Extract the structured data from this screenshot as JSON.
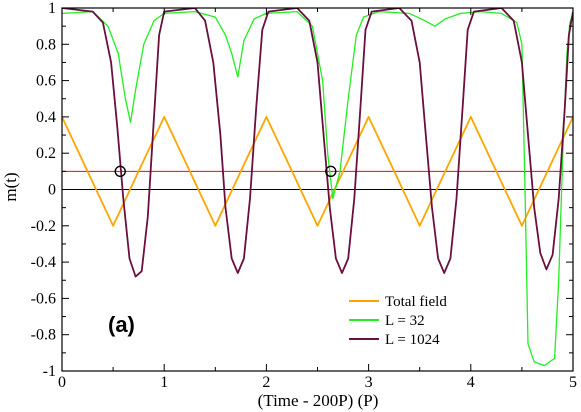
{
  "chart_data": {
    "type": "line",
    "panel_label": "(a)",
    "xlabel": "(Time - 200P) (P)",
    "ylabel": "m(t)",
    "xlim": [
      0,
      5
    ],
    "ylim": [
      -1,
      1
    ],
    "x_ticks": [
      "0",
      "1",
      "2",
      "3",
      "4",
      "5"
    ],
    "y_ticks": [
      "-1",
      "-0.8",
      "-0.6",
      "-0.4",
      "-0.2",
      "0",
      "0.2",
      "0.4",
      "0.6",
      "0.8",
      "1"
    ],
    "grid": false,
    "legend_position": "bottom-right",
    "reference_lines": [
      {
        "y": 0,
        "color": "#000000"
      },
      {
        "y": 0.1,
        "color": "#ff0000"
      }
    ],
    "markers": [
      {
        "x": 0.57,
        "y": 0.1
      },
      {
        "x": 2.63,
        "y": 0.1
      }
    ],
    "series": [
      {
        "name": "Total field",
        "color": "#ffa500",
        "points": [
          [
            0,
            0.4
          ],
          [
            0.25,
            0.1
          ],
          [
            0.5,
            -0.2
          ],
          [
            0.75,
            0.1
          ],
          [
            1.0,
            0.4
          ],
          [
            1.25,
            0.1
          ],
          [
            1.5,
            -0.2
          ],
          [
            1.75,
            0.1
          ],
          [
            2.0,
            0.4
          ],
          [
            2.25,
            0.1
          ],
          [
            2.5,
            -0.2
          ],
          [
            2.75,
            0.1
          ],
          [
            3.0,
            0.4
          ],
          [
            3.25,
            0.1
          ],
          [
            3.5,
            -0.2
          ],
          [
            3.75,
            0.1
          ],
          [
            4.0,
            0.4
          ],
          [
            4.25,
            0.1
          ],
          [
            4.5,
            -0.2
          ],
          [
            4.75,
            0.1
          ],
          [
            5.0,
            0.4
          ]
        ]
      },
      {
        "name": "L = 32",
        "color": "#22ee22",
        "points": [
          [
            0,
            0.97
          ],
          [
            0.3,
            0.98
          ],
          [
            0.45,
            0.9
          ],
          [
            0.55,
            0.75
          ],
          [
            0.62,
            0.5
          ],
          [
            0.67,
            0.37
          ],
          [
            0.72,
            0.55
          ],
          [
            0.8,
            0.8
          ],
          [
            0.9,
            0.93
          ],
          [
            1.0,
            0.97
          ],
          [
            1.3,
            0.98
          ],
          [
            1.5,
            0.95
          ],
          [
            1.6,
            0.85
          ],
          [
            1.66,
            0.75
          ],
          [
            1.72,
            0.62
          ],
          [
            1.78,
            0.82
          ],
          [
            1.88,
            0.94
          ],
          [
            2.0,
            0.97
          ],
          [
            2.3,
            0.98
          ],
          [
            2.45,
            0.9
          ],
          [
            2.55,
            0.6
          ],
          [
            2.6,
            0.2
          ],
          [
            2.65,
            -0.05
          ],
          [
            2.72,
            0.1
          ],
          [
            2.8,
            0.5
          ],
          [
            2.88,
            0.85
          ],
          [
            2.95,
            0.95
          ],
          [
            3.1,
            0.98
          ],
          [
            3.4,
            0.97
          ],
          [
            3.55,
            0.93
          ],
          [
            3.65,
            0.9
          ],
          [
            3.75,
            0.94
          ],
          [
            3.9,
            0.97
          ],
          [
            4.1,
            0.98
          ],
          [
            4.3,
            0.97
          ],
          [
            4.45,
            0.92
          ],
          [
            4.5,
            0.8
          ],
          [
            4.53,
            0.0
          ],
          [
            4.56,
            -0.85
          ],
          [
            4.62,
            -0.95
          ],
          [
            4.72,
            -0.97
          ],
          [
            4.82,
            -0.93
          ],
          [
            4.86,
            -0.5
          ],
          [
            4.9,
            0.2
          ],
          [
            4.94,
            0.75
          ],
          [
            4.97,
            0.92
          ],
          [
            5.0,
            0.97
          ]
        ]
      },
      {
        "name": "L = 1024",
        "color": "#6b0f3f",
        "points": [
          [
            0,
            1.0
          ],
          [
            0.3,
            0.98
          ],
          [
            0.4,
            0.92
          ],
          [
            0.48,
            0.7
          ],
          [
            0.54,
            0.35
          ],
          [
            0.6,
            -0.05
          ],
          [
            0.66,
            -0.38
          ],
          [
            0.72,
            -0.48
          ],
          [
            0.78,
            -0.45
          ],
          [
            0.84,
            -0.15
          ],
          [
            0.9,
            0.4
          ],
          [
            0.95,
            0.85
          ],
          [
            1.0,
            0.98
          ],
          [
            1.3,
            1.0
          ],
          [
            1.4,
            0.93
          ],
          [
            1.48,
            0.7
          ],
          [
            1.55,
            0.3
          ],
          [
            1.6,
            -0.1
          ],
          [
            1.66,
            -0.38
          ],
          [
            1.72,
            -0.46
          ],
          [
            1.78,
            -0.38
          ],
          [
            1.84,
            -0.05
          ],
          [
            1.9,
            0.45
          ],
          [
            1.96,
            0.88
          ],
          [
            2.02,
            0.98
          ],
          [
            2.3,
            1.0
          ],
          [
            2.42,
            0.93
          ],
          [
            2.5,
            0.7
          ],
          [
            2.56,
            0.3
          ],
          [
            2.62,
            -0.1
          ],
          [
            2.68,
            -0.38
          ],
          [
            2.74,
            -0.46
          ],
          [
            2.8,
            -0.38
          ],
          [
            2.86,
            -0.05
          ],
          [
            2.92,
            0.45
          ],
          [
            2.97,
            0.88
          ],
          [
            3.03,
            0.98
          ],
          [
            3.3,
            1.0
          ],
          [
            3.42,
            0.93
          ],
          [
            3.5,
            0.7
          ],
          [
            3.56,
            0.3
          ],
          [
            3.62,
            -0.1
          ],
          [
            3.68,
            -0.38
          ],
          [
            3.74,
            -0.46
          ],
          [
            3.8,
            -0.38
          ],
          [
            3.86,
            -0.05
          ],
          [
            3.92,
            0.45
          ],
          [
            3.97,
            0.88
          ],
          [
            4.03,
            0.98
          ],
          [
            4.3,
            1.0
          ],
          [
            4.42,
            0.93
          ],
          [
            4.5,
            0.7
          ],
          [
            4.56,
            0.3
          ],
          [
            4.62,
            -0.1
          ],
          [
            4.68,
            -0.35
          ],
          [
            4.74,
            -0.44
          ],
          [
            4.8,
            -0.36
          ],
          [
            4.86,
            -0.05
          ],
          [
            4.92,
            0.45
          ],
          [
            4.96,
            0.85
          ],
          [
            5.0,
            0.98
          ]
        ]
      }
    ]
  }
}
